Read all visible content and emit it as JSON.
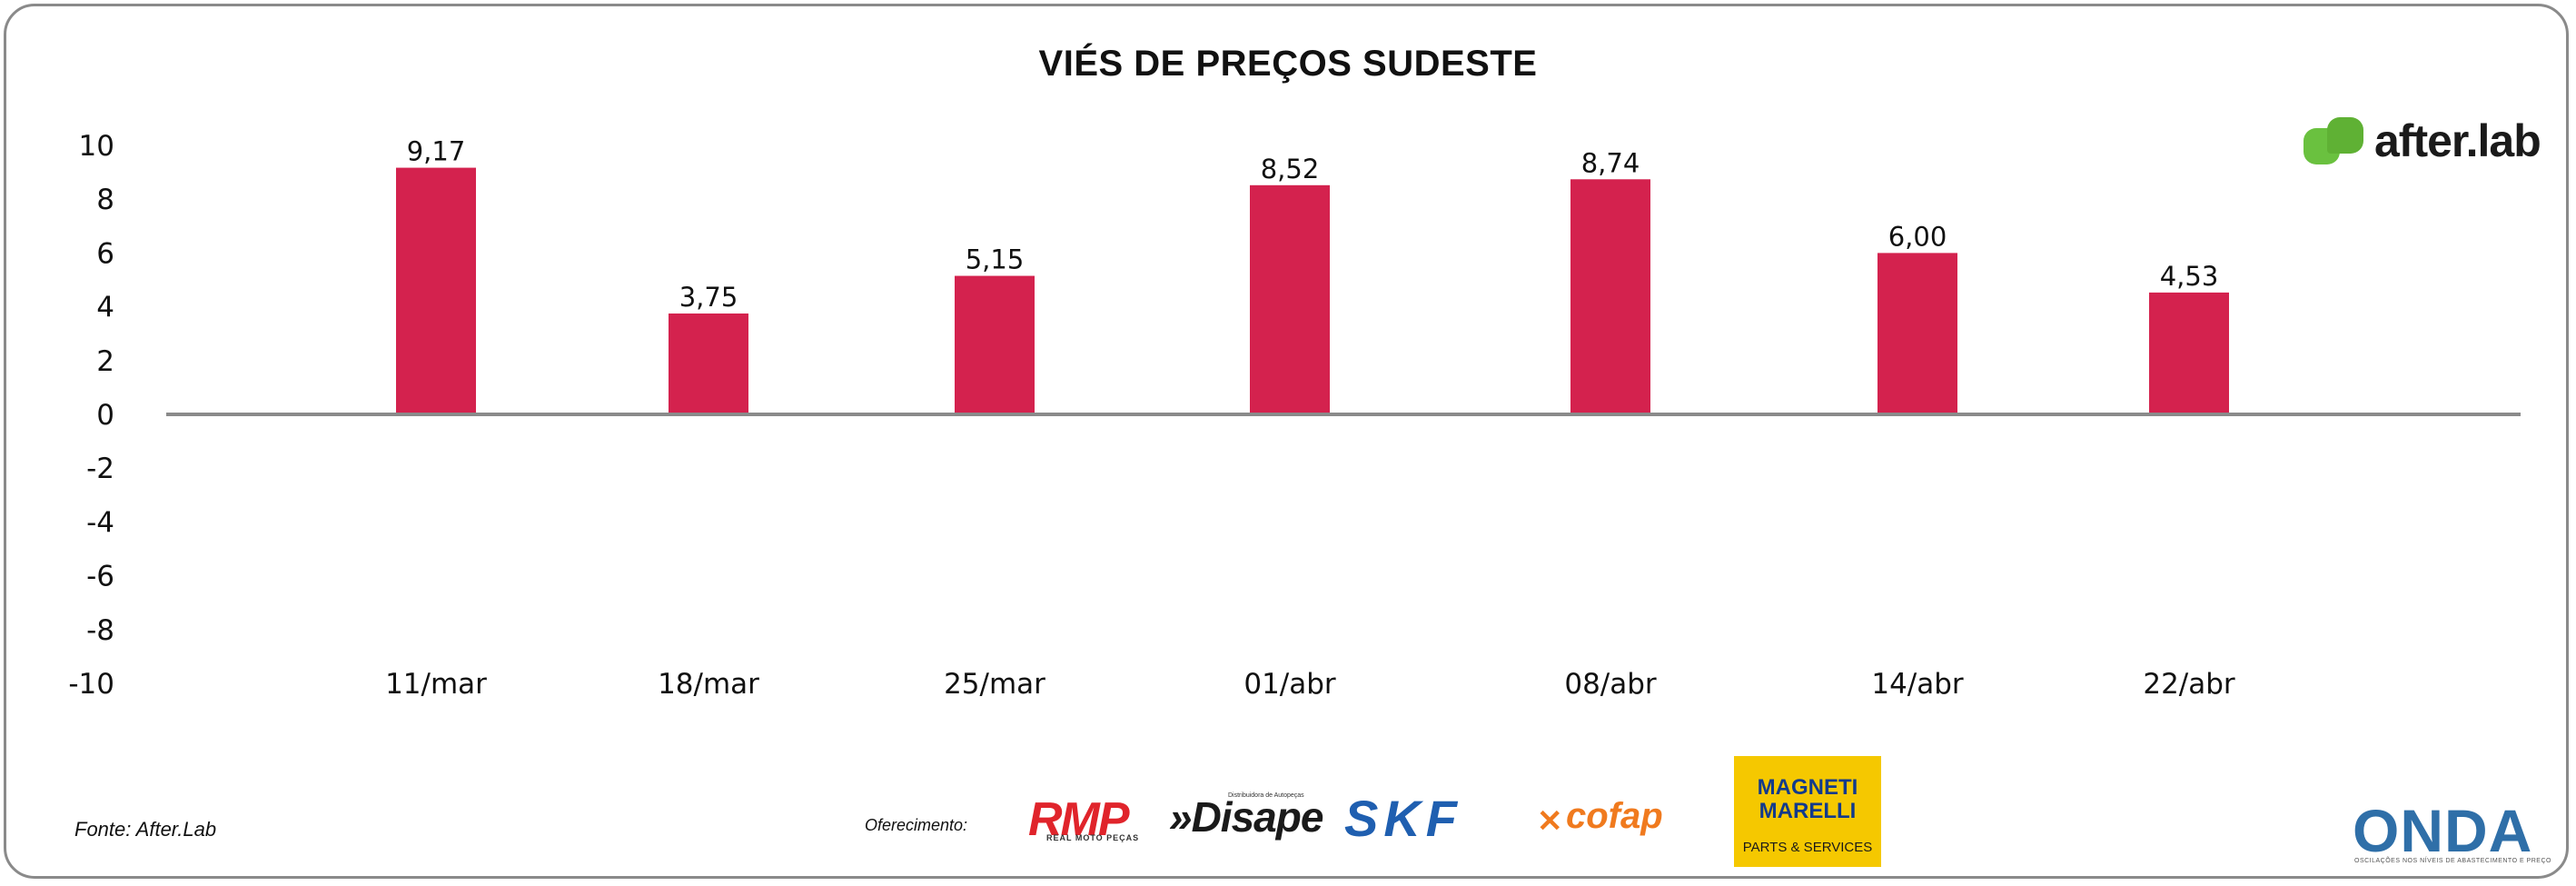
{
  "chart_data": {
    "type": "bar",
    "title": "VIÉS DE PREÇOS SUDESTE",
    "categories": [
      "11/mar",
      "18/mar",
      "25/mar",
      "01/abr",
      "08/abr",
      "14/abr",
      "22/abr"
    ],
    "values": [
      9.17,
      3.75,
      5.15,
      8.52,
      8.74,
      6.0,
      4.53
    ],
    "value_labels": [
      "9,17",
      "3,75",
      "5,15",
      "8,52",
      "8,74",
      "6,00",
      "4,53"
    ],
    "xlabel": "",
    "ylabel": "",
    "ylim": [
      -10,
      10
    ],
    "yticks": [
      "10",
      "8",
      "6",
      "4",
      "2",
      "0",
      "-2",
      "-4",
      "-6",
      "-8",
      "-10"
    ],
    "grid": false,
    "legend": "none",
    "bar_color": "#d4224e",
    "axis_color": "#8a8a8a"
  },
  "footer": {
    "source": "Fonte: After.Lab",
    "sponsor_label": "Oferecimento:"
  },
  "brands": {
    "after_lab": "after.lab",
    "rmp": "RMP",
    "rmp_sub": "REAL MOTO PEÇAS",
    "disape": "»Disape",
    "disape_sub": "Distribuidora de Autopeças",
    "skf": "SKF",
    "cofap": "cofap",
    "magneti_line1": "MAGNETI",
    "magneti_line2": "MARELLI",
    "magneti_line3": "PARTS & SERVICES",
    "onda": "ONDA",
    "onda_sub": "OSCILAÇÕES NOS NÍVEIS DE ABASTECIMENTO E PREÇO"
  }
}
